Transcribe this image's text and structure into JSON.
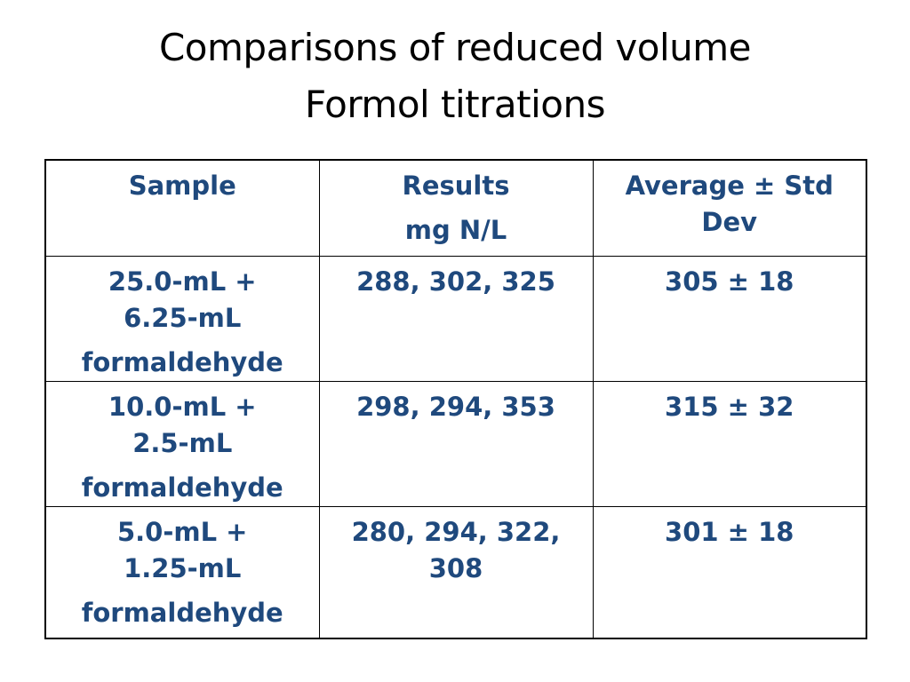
{
  "slide": {
    "title_line1": "Comparisons of reduced volume",
    "title_line2": "Formol titrations"
  },
  "table": {
    "header": {
      "sample": "Sample",
      "results_line1": "Results",
      "results_line2": "mg N/L",
      "average_line1": "Average ± Std",
      "average_line2": "Dev"
    },
    "rows": [
      {
        "sample_line1": "25.0-mL +",
        "sample_line2": "6.25-mL",
        "sample_line3": "formaldehyde",
        "results_line1": "288, 302, 325",
        "results_line2": "",
        "average": "305 ± 18"
      },
      {
        "sample_line1": "10.0-mL +",
        "sample_line2": "2.5-mL",
        "sample_line3": "formaldehyde",
        "results_line1": "298, 294, 353",
        "results_line2": "",
        "average": "315 ± 32"
      },
      {
        "sample_line1": "5.0-mL +",
        "sample_line2": "1.25-mL",
        "sample_line3": "formaldehyde",
        "results_line1": "280, 294, 322,",
        "results_line2": "308",
        "average": "301 ± 18"
      }
    ]
  },
  "colors": {
    "text_accent": "#1f497d",
    "title": "#000000",
    "border": "#000000"
  }
}
